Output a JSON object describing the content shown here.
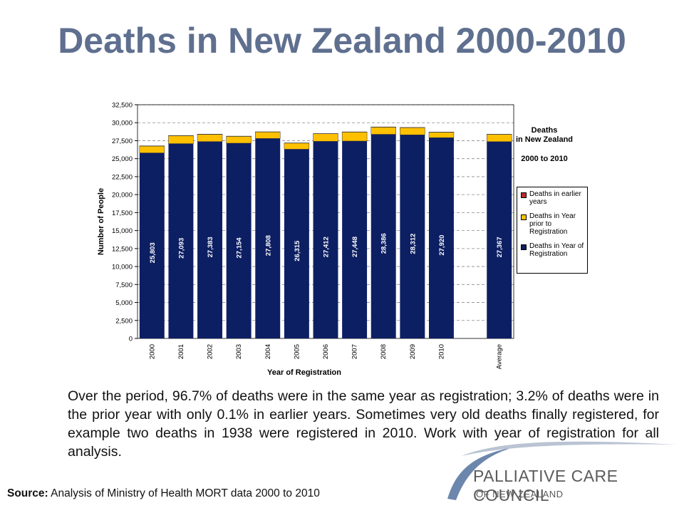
{
  "title": "Deaths in New Zealand 2000-2010",
  "chart_data": {
    "type": "stacked_bar",
    "categories": [
      "2000",
      "2001",
      "2002",
      "2003",
      "2004",
      "2005",
      "2006",
      "2007",
      "2008",
      "2009",
      "2010",
      null,
      "Average"
    ],
    "series": [
      {
        "name": "Deaths in Year of Registration",
        "color": "#0d1f63",
        "values": [
          25803,
          27093,
          27383,
          27154,
          27808,
          26315,
          27412,
          27448,
          28386,
          28312,
          27920,
          null,
          27367
        ],
        "value_labels": [
          "25,803",
          "27,093",
          "27,383",
          "27,154",
          "27,808",
          "26,315",
          "27,412",
          "27,448",
          "28,386",
          "28,312",
          "27,920",
          null,
          "27,367"
        ]
      },
      {
        "name": "Deaths in Year prior to Registration",
        "color": "#ffc000",
        "values": [
          950,
          1100,
          1000,
          950,
          900,
          850,
          1050,
          1250,
          1000,
          1000,
          750,
          null,
          1000
        ]
      },
      {
        "name": "Deaths in earlier years",
        "color": "#c0282b",
        "values": [
          30,
          30,
          30,
          30,
          30,
          30,
          30,
          30,
          30,
          30,
          30,
          null,
          30
        ]
      }
    ],
    "ylim": [
      0,
      32500
    ],
    "yticks": [
      0,
      {
        "value": 2500,
        "label": "2,500"
      },
      {
        "value": 5000,
        "label": "5,000"
      },
      {
        "value": 7500,
        "label": "7,500"
      },
      {
        "value": 10000,
        "label": "10,000"
      },
      {
        "value": 12500,
        "label": "12,500"
      },
      {
        "value": 15000,
        "label": "15,000"
      },
      {
        "value": 17500,
        "label": "17,500"
      },
      {
        "value": 20000,
        "label": "20,000"
      },
      {
        "value": 22500,
        "label": "22,500"
      },
      {
        "value": 25000,
        "label": "25,000"
      },
      {
        "value": 27500,
        "label": "27,500"
      },
      {
        "value": 30000,
        "label": "30,000"
      },
      {
        "value": 32500,
        "label": "32,500"
      }
    ],
    "grid": true,
    "ylabel": "Number of People",
    "xlabel": "Year of Registration",
    "annotation_title": "Deaths in New Zealand",
    "annotation_subtitle": "2000 to 2010",
    "legend_position": "right"
  },
  "body_text": "Over the period, 96.7% of deaths were in the same year as registration; 3.2% of deaths were in the prior year with only 0.1% in earlier years. Sometimes very old deaths finally registered, for example two deaths in 1938 were registered in 2010. Work with year of registration for all analysis.",
  "source_label": "Source:",
  "source_text": "Analysis of Ministry of Health MORT data 2000 to 2010",
  "logo": {
    "name": "PALLIATIVE CARE COUNCIL",
    "subname": "OF NEW ZEALAND"
  }
}
